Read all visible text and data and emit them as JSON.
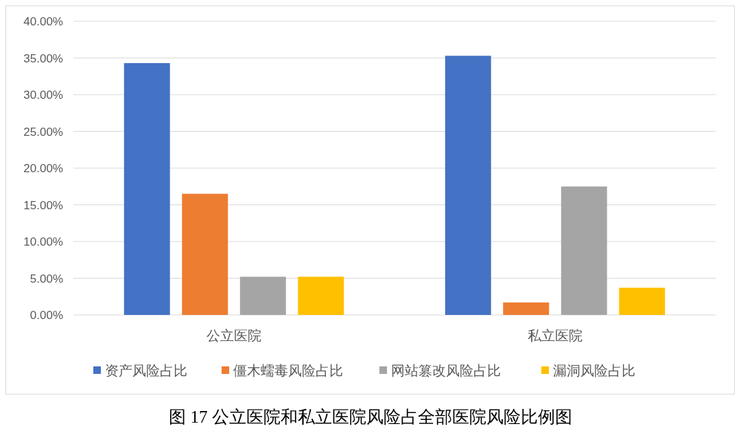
{
  "chart_data": {
    "type": "bar",
    "title": "图 17 公立医院和私立医院风险占全部医院风险比例图",
    "categories": [
      "公立医院",
      "私立医院"
    ],
    "series": [
      {
        "name": "资产风险占比",
        "color": "#4472c4",
        "values": [
          34.3,
          35.3
        ]
      },
      {
        "name": "僵木蠕毒风险占比",
        "color": "#ed7d31",
        "values": [
          16.5,
          1.7
        ]
      },
      {
        "name": "网站篡改风险占比",
        "color": "#a5a5a5",
        "values": [
          5.2,
          17.5
        ]
      },
      {
        "name": "漏洞风险占比",
        "color": "#ffc000",
        "values": [
          5.2,
          3.7
        ]
      }
    ],
    "ylim": [
      0,
      40
    ],
    "yticks": [
      {
        "value": 0,
        "label": "0.00%"
      },
      {
        "value": 5,
        "label": "5.00%"
      },
      {
        "value": 10,
        "label": "10.00%"
      },
      {
        "value": 15,
        "label": "15.00%"
      },
      {
        "value": 20,
        "label": "20.00%"
      },
      {
        "value": 25,
        "label": "25.00%"
      },
      {
        "value": 30,
        "label": "30.00%"
      },
      {
        "value": 35,
        "label": "35.00%"
      },
      {
        "value": 40,
        "label": "40.00%"
      }
    ],
    "grid": "y",
    "legend": "bottom"
  }
}
